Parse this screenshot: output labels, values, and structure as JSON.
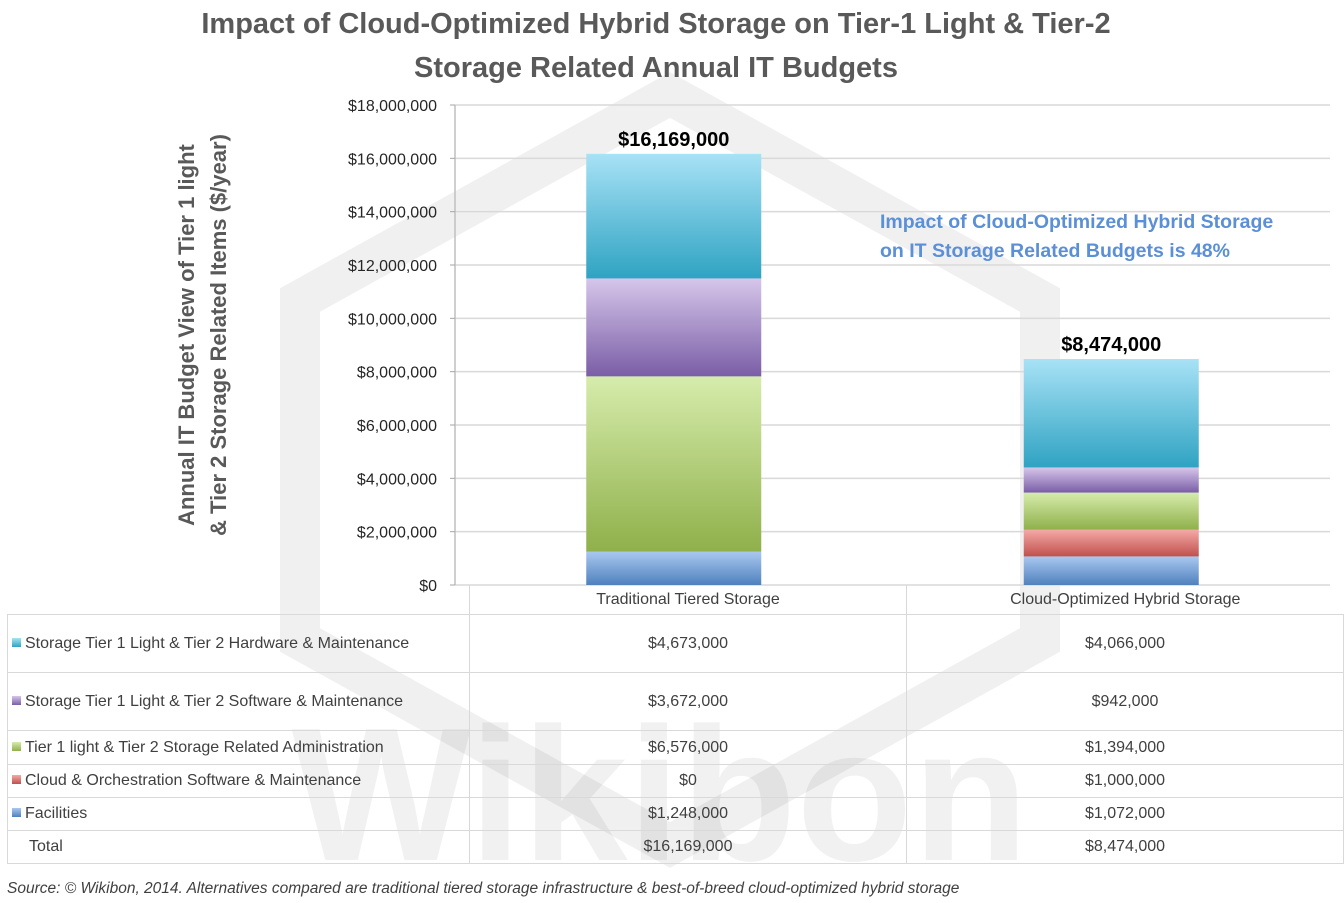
{
  "chart_data": {
    "type": "bar",
    "stacked": true,
    "title": "Impact of Cloud-Optimized Hybrid Storage on Tier-1 Light & Tier-2 Storage Related Annual IT Budgets",
    "title_lines": [
      "Impact of Cloud-Optimized Hybrid Storage on Tier-1 Light & Tier-2",
      "Storage Related Annual IT Budgets"
    ],
    "ylabel_lines": [
      "Annual IT Budget View of Tier 1 light",
      "& Tier 2 Storage Related Items ($/year)"
    ],
    "xlabel": "",
    "ylim": [
      0,
      18000000
    ],
    "y_ticks": [
      0,
      2000000,
      4000000,
      6000000,
      8000000,
      10000000,
      12000000,
      14000000,
      16000000,
      18000000
    ],
    "y_tick_labels": [
      "$0",
      "$2,000,000",
      "$4,000,000",
      "$6,000,000",
      "$8,000,000",
      "$10,000,000",
      "$12,000,000",
      "$14,000,000",
      "$16,000,000",
      "$18,000,000"
    ],
    "grid": true,
    "legend": "data-table",
    "categories": [
      "Traditional Tiered Storage",
      "Cloud-Optimized Hybrid Storage"
    ],
    "series": [
      {
        "name": "Facilities",
        "values": [
          1248000,
          1072000
        ],
        "labels": [
          "$1,248,000",
          "$1,072,000"
        ],
        "color": "#4f81bd",
        "light": "#a9c8f0"
      },
      {
        "name": "Cloud & Orchestration Software & Maintenance",
        "values": [
          0,
          1000000
        ],
        "labels": [
          "$0",
          "$1,000,000"
        ],
        "color": "#c0504d",
        "light": "#f4aaa6"
      },
      {
        "name": "Tier 1 light & Tier 2 Storage Related Administration",
        "values": [
          6576000,
          1394000
        ],
        "labels": [
          "$6,576,000",
          "$1,394,000"
        ],
        "color": "#8fb04a",
        "light": "#d6ecac"
      },
      {
        "name": "Storage Tier 1 Light & Tier 2 Software & Maintenance",
        "values": [
          3672000,
          942000
        ],
        "labels": [
          "$3,672,000",
          "$942,000"
        ],
        "color": "#7a5ea6",
        "light": "#d6c6ea"
      },
      {
        "name": "Storage Tier 1 Light & Tier 2 Hardware & Maintenance",
        "values": [
          4673000,
          4066000
        ],
        "labels": [
          "$4,673,000",
          "$4,066,000"
        ],
        "color": "#2fa3c2",
        "light": "#a8e2f6"
      }
    ],
    "table_order": [
      4,
      3,
      2,
      1,
      0
    ],
    "totals": [
      16169000,
      8474000
    ],
    "total_labels": [
      "$16,169,000",
      "$8,474,000"
    ],
    "total_row_label": "Total",
    "annotation_lines": [
      "Impact of Cloud-Optimized Hybrid Storage",
      "on IT Storage Related Budgets is 48%"
    ],
    "annotation_color": "#5b8fd6"
  },
  "source": "Source: © Wikibon, 2014.  Alternatives compared are traditional tiered storage infrastructure & best-of-breed cloud-optimized hybrid storage",
  "watermark": "Wikibon"
}
